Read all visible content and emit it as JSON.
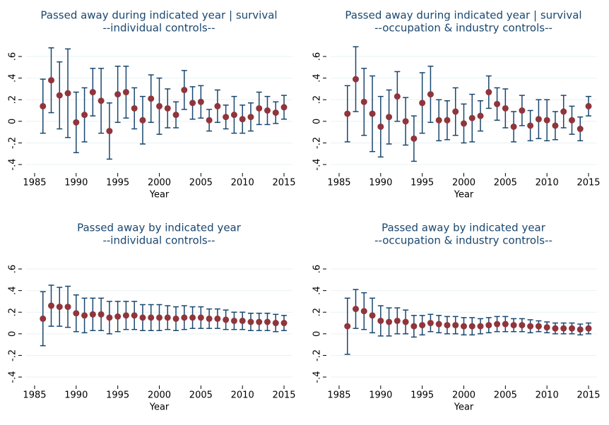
{
  "chart_data": [
    {
      "type": "errorbar",
      "title": "Passed away during indicated year | survival",
      "subtitle": "--individual controls--",
      "xlabel": "Year",
      "x": [
        1986,
        1987,
        1988,
        1989,
        1990,
        1991,
        1992,
        1993,
        1994,
        1995,
        1996,
        1997,
        1998,
        1999,
        2000,
        2001,
        2002,
        2003,
        2004,
        2005,
        2006,
        2007,
        2008,
        2009,
        2010,
        2011,
        2012,
        2013,
        2014,
        2015
      ],
      "values": [
        0.14,
        0.38,
        0.24,
        0.26,
        -0.01,
        0.06,
        0.27,
        0.19,
        -0.09,
        0.25,
        0.27,
        0.12,
        0.01,
        0.21,
        0.14,
        0.12,
        0.06,
        0.29,
        0.17,
        0.18,
        0.01,
        0.14,
        0.04,
        0.06,
        0.02,
        0.04,
        0.12,
        0.1,
        0.08,
        0.13
      ],
      "errors": [
        0.25,
        0.3,
        0.31,
        0.41,
        0.28,
        0.25,
        0.22,
        0.3,
        0.26,
        0.26,
        0.24,
        0.19,
        0.22,
        0.22,
        0.26,
        0.18,
        0.12,
        0.18,
        0.15,
        0.15,
        0.1,
        0.15,
        0.11,
        0.17,
        0.13,
        0.13,
        0.15,
        0.13,
        0.1,
        0.11
      ],
      "color": "#90353b",
      "bar_color": "#1a476f",
      "xlim": [
        1984,
        2016
      ],
      "xticks": [
        1985,
        1990,
        1995,
        2000,
        2005,
        2010,
        2015
      ],
      "ylim": [
        -0.45,
        0.7
      ],
      "yticks": [
        {
          "value": -0.4,
          "label": "-.4"
        },
        {
          "value": -0.2,
          "label": "-.2"
        },
        0,
        {
          "value": 0.2,
          "label": ".2"
        },
        {
          "value": 0.4,
          "label": ".4"
        },
        {
          "value": 0.6,
          "label": ".6"
        }
      ],
      "grid": true
    },
    {
      "type": "errorbar",
      "title": "Passed away during indicated year | survival",
      "subtitle": "--occupation & industry controls--",
      "xlabel": "Year",
      "x": [
        1986,
        1987,
        1988,
        1989,
        1990,
        1991,
        1992,
        1993,
        1994,
        1995,
        1996,
        1997,
        1998,
        1999,
        2000,
        2001,
        2002,
        2003,
        2004,
        2005,
        2006,
        2007,
        2008,
        2009,
        2010,
        2011,
        2012,
        2013,
        2014,
        2015
      ],
      "values": [
        0.07,
        0.39,
        0.18,
        0.07,
        -0.05,
        0.04,
        0.23,
        0.0,
        -0.16,
        0.17,
        0.25,
        0.01,
        0.01,
        0.09,
        -0.02,
        0.03,
        0.05,
        0.27,
        0.16,
        0.12,
        -0.05,
        0.1,
        -0.04,
        0.02,
        0.01,
        -0.04,
        0.09,
        0.01,
        -0.07,
        0.14
      ],
      "errors": [
        0.26,
        0.3,
        0.31,
        0.35,
        0.28,
        0.25,
        0.23,
        0.22,
        0.21,
        0.28,
        0.26,
        0.19,
        0.18,
        0.22,
        0.18,
        0.22,
        0.14,
        0.15,
        0.15,
        0.18,
        0.14,
        0.14,
        0.14,
        0.18,
        0.19,
        0.13,
        0.15,
        0.13,
        0.11,
        0.09
      ],
      "color": "#90353b",
      "bar_color": "#1a476f",
      "xlim": [
        1984,
        2016
      ],
      "xticks": [
        1985,
        1990,
        1995,
        2000,
        2005,
        2010,
        2015
      ],
      "ylim": [
        -0.45,
        0.7
      ],
      "yticks": [
        {
          "value": -0.4,
          "label": "-.4"
        },
        {
          "value": -0.2,
          "label": "-.2"
        },
        0,
        {
          "value": 0.2,
          "label": ".2"
        },
        {
          "value": 0.4,
          "label": ".4"
        },
        {
          "value": 0.6,
          "label": ".6"
        }
      ],
      "grid": true
    },
    {
      "type": "errorbar",
      "title": "Passed away by indicated year",
      "subtitle": "--individual controls--",
      "xlabel": "Year",
      "x": [
        1986,
        1987,
        1988,
        1989,
        1990,
        1991,
        1992,
        1993,
        1994,
        1995,
        1996,
        1997,
        1998,
        1999,
        2000,
        2001,
        2002,
        2003,
        2004,
        2005,
        2006,
        2007,
        2008,
        2009,
        2010,
        2011,
        2012,
        2013,
        2014,
        2015
      ],
      "values": [
        0.14,
        0.26,
        0.25,
        0.25,
        0.19,
        0.17,
        0.18,
        0.18,
        0.15,
        0.16,
        0.17,
        0.17,
        0.15,
        0.15,
        0.15,
        0.15,
        0.14,
        0.15,
        0.15,
        0.15,
        0.14,
        0.14,
        0.13,
        0.12,
        0.12,
        0.11,
        0.11,
        0.11,
        0.1,
        0.1
      ],
      "errors": [
        0.25,
        0.19,
        0.18,
        0.19,
        0.17,
        0.16,
        0.15,
        0.15,
        0.15,
        0.14,
        0.13,
        0.13,
        0.12,
        0.12,
        0.12,
        0.11,
        0.11,
        0.11,
        0.1,
        0.1,
        0.09,
        0.09,
        0.09,
        0.08,
        0.08,
        0.08,
        0.08,
        0.08,
        0.08,
        0.07
      ],
      "color": "#90353b",
      "bar_color": "#1a476f",
      "xlim": [
        1984,
        2016
      ],
      "xticks": [
        1985,
        1990,
        1995,
        2000,
        2005,
        2010,
        2015
      ],
      "ylim": [
        -0.45,
        0.7
      ],
      "yticks": [
        {
          "value": -0.4,
          "label": "-.4"
        },
        {
          "value": -0.2,
          "label": "-.2"
        },
        0,
        {
          "value": 0.2,
          "label": ".2"
        },
        {
          "value": 0.4,
          "label": ".4"
        },
        {
          "value": 0.6,
          "label": ".6"
        }
      ],
      "grid": true
    },
    {
      "type": "errorbar",
      "title": "Passed away by indicated year",
      "subtitle": "--occupation & industry controls--",
      "xlabel": "Year",
      "x": [
        1986,
        1987,
        1988,
        1989,
        1990,
        1991,
        1992,
        1993,
        1994,
        1995,
        1996,
        1997,
        1998,
        1999,
        2000,
        2001,
        2002,
        2003,
        2004,
        2005,
        2006,
        2007,
        2008,
        2009,
        2010,
        2011,
        2012,
        2013,
        2014,
        2015
      ],
      "values": [
        0.07,
        0.23,
        0.21,
        0.17,
        0.12,
        0.11,
        0.12,
        0.11,
        0.07,
        0.08,
        0.1,
        0.09,
        0.08,
        0.08,
        0.07,
        0.07,
        0.07,
        0.08,
        0.09,
        0.09,
        0.08,
        0.08,
        0.07,
        0.07,
        0.06,
        0.05,
        0.05,
        0.05,
        0.04,
        0.05
      ],
      "errors": [
        0.26,
        0.18,
        0.17,
        0.16,
        0.14,
        0.13,
        0.12,
        0.11,
        0.1,
        0.09,
        0.08,
        0.08,
        0.08,
        0.08,
        0.08,
        0.08,
        0.07,
        0.07,
        0.07,
        0.07,
        0.06,
        0.06,
        0.06,
        0.05,
        0.05,
        0.05,
        0.05,
        0.05,
        0.05,
        0.05
      ],
      "color": "#90353b",
      "bar_color": "#1a476f",
      "xlim": [
        1984,
        2016
      ],
      "xticks": [
        1985,
        1990,
        1995,
        2000,
        2005,
        2010,
        2015
      ],
      "ylim": [
        -0.45,
        0.7
      ],
      "yticks": [
        {
          "value": -0.4,
          "label": "-.4"
        },
        {
          "value": -0.2,
          "label": "-.2"
        },
        0,
        {
          "value": 0.2,
          "label": ".2"
        },
        {
          "value": 0.4,
          "label": ".4"
        },
        {
          "value": 0.6,
          "label": ".6"
        }
      ],
      "grid": true
    }
  ]
}
